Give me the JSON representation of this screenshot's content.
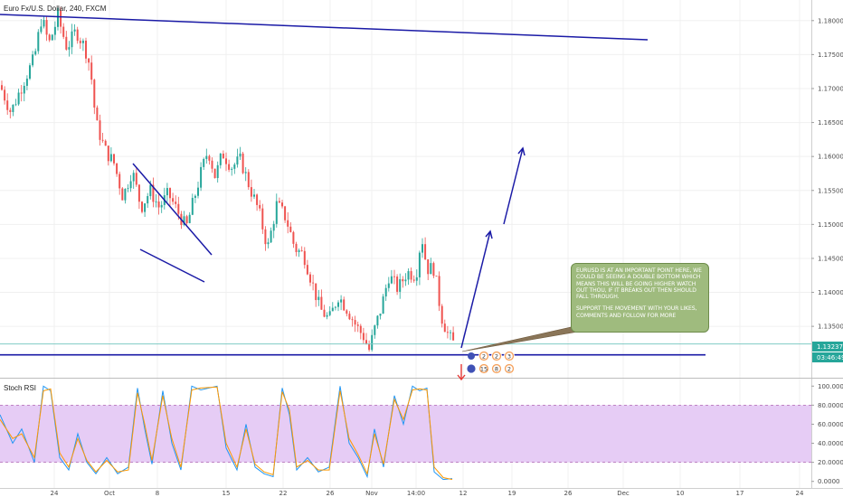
{
  "colors": {
    "up": "#26a69a",
    "down": "#ef5350",
    "trendline": "#1a1aa6",
    "hline": "#80cbc4",
    "rsi_k": "#2196f3",
    "rsi_d": "#ff9800",
    "band": "#e6ccf5"
  },
  "chart_data": [
    {
      "type": "candlestick",
      "title": "Euro Fx/U.S. Dollar, 240, FXCM",
      "y_ticks": [
        "1.18000",
        "1.17500",
        "1.17000",
        "1.16500",
        "1.16000",
        "1.15500",
        "1.15000",
        "1.14500",
        "1.14000",
        "1.13500"
      ],
      "ylim": [
        1.1285,
        1.1825
      ],
      "x_ticks": [
        "24",
        "Oct",
        "8",
        "15",
        "22",
        "26",
        "Nov",
        "14:00",
        "12",
        "19",
        "26",
        "Dec",
        "10",
        "17",
        "24"
      ],
      "price_label": "1.13237",
      "countdown_label": "03:46:49",
      "last_price": 1.1324,
      "support_level": 1.1308,
      "price_path": [
        [
          0,
          1.1705
        ],
        [
          12,
          1.1665
        ],
        [
          26,
          1.171
        ],
        [
          38,
          1.1745
        ],
        [
          46,
          1.1805
        ],
        [
          54,
          1.1765
        ],
        [
          64,
          1.1805
        ],
        [
          74,
          1.176
        ],
        [
          84,
          1.1785
        ],
        [
          94,
          1.176
        ],
        [
          100,
          1.173
        ],
        [
          106,
          1.165
        ],
        [
          116,
          1.161
        ],
        [
          126,
          1.159
        ],
        [
          136,
          1.154
        ],
        [
          146,
          1.158
        ],
        [
          156,
          1.1525
        ],
        [
          166,
          1.155
        ],
        [
          176,
          1.1525
        ],
        [
          186,
          1.1545
        ],
        [
          196,
          1.152
        ],
        [
          206,
          1.1495
        ],
        [
          214,
          1.1535
        ],
        [
          222,
          1.1575
        ],
        [
          230,
          1.161
        ],
        [
          238,
          1.157
        ],
        [
          246,
          1.1605
        ],
        [
          256,
          1.1585
        ],
        [
          266,
          1.1595
        ],
        [
          276,
          1.1555
        ],
        [
          286,
          1.152
        ],
        [
          296,
          1.1465
        ],
        [
          306,
          1.153
        ],
        [
          316,
          1.151
        ],
        [
          326,
          1.1465
        ],
        [
          336,
          1.1455
        ],
        [
          346,
          1.141
        ],
        [
          354,
          1.1375
        ],
        [
          364,
          1.136
        ],
        [
          374,
          1.1395
        ],
        [
          384,
          1.1375
        ],
        [
          394,
          1.135
        ],
        [
          402,
          1.1335
        ],
        [
          408,
          1.1315
        ],
        [
          414,
          1.1345
        ],
        [
          422,
          1.138
        ],
        [
          430,
          1.1425
        ],
        [
          440,
          1.1405
        ],
        [
          450,
          1.143
        ],
        [
          460,
          1.1425
        ],
        [
          466,
          1.1485
        ],
        [
          472,
          1.1435
        ],
        [
          480,
          1.1435
        ],
        [
          488,
          1.1365
        ],
        [
          496,
          1.1335
        ],
        [
          502,
          1.1324
        ]
      ]
    },
    {
      "type": "line",
      "title": "Stoch RSI",
      "y_ticks": [
        "100.0000",
        "80.0000",
        "60.0000",
        "40.0000",
        "20.0000",
        "0.0000"
      ],
      "ylim": [
        -5,
        105
      ],
      "bands": [
        20,
        80
      ],
      "series": [
        {
          "values": [
            [
              0,
              70
            ],
            [
              14,
              40
            ],
            [
              24,
              55
            ],
            [
              38,
              20
            ],
            [
              48,
              100
            ],
            [
              56,
              95
            ],
            [
              66,
              25
            ],
            [
              76,
              12
            ],
            [
              86,
              50
            ],
            [
              96,
              20
            ],
            [
              106,
              8
            ],
            [
              118,
              25
            ],
            [
              130,
              8
            ],
            [
              142,
              15
            ],
            [
              152,
              98
            ],
            [
              160,
              55
            ],
            [
              168,
              18
            ],
            [
              180,
              95
            ],
            [
              190,
              40
            ],
            [
              200,
              12
            ],
            [
              212,
              100
            ],
            [
              222,
              96
            ],
            [
              240,
              100
            ],
            [
              250,
              35
            ],
            [
              262,
              12
            ],
            [
              272,
              60
            ],
            [
              282,
              15
            ],
            [
              292,
              8
            ],
            [
              302,
              5
            ],
            [
              312,
              98
            ],
            [
              320,
              70
            ],
            [
              328,
              12
            ],
            [
              340,
              25
            ],
            [
              352,
              10
            ],
            [
              364,
              15
            ],
            [
              376,
              100
            ],
            [
              386,
              40
            ],
            [
              396,
              25
            ],
            [
              406,
              5
            ],
            [
              414,
              55
            ],
            [
              424,
              15
            ],
            [
              436,
              90
            ],
            [
              446,
              60
            ],
            [
              456,
              100
            ],
            [
              464,
              95
            ],
            [
              472,
              98
            ],
            [
              480,
              10
            ],
            [
              490,
              2
            ],
            [
              500,
              3
            ]
          ]
        },
        {
          "values": [
            [
              0,
              65
            ],
            [
              14,
              45
            ],
            [
              24,
              50
            ],
            [
              38,
              25
            ],
            [
              48,
              95
            ],
            [
              56,
              97
            ],
            [
              66,
              30
            ],
            [
              76,
              15
            ],
            [
              86,
              45
            ],
            [
              96,
              22
            ],
            [
              106,
              10
            ],
            [
              118,
              22
            ],
            [
              130,
              10
            ],
            [
              142,
              12
            ],
            [
              152,
              93
            ],
            [
              160,
              60
            ],
            [
              168,
              22
            ],
            [
              180,
              90
            ],
            [
              190,
              45
            ],
            [
              200,
              15
            ],
            [
              212,
              96
            ],
            [
              222,
              98
            ],
            [
              240,
              99
            ],
            [
              250,
              40
            ],
            [
              262,
              15
            ],
            [
              272,
              55
            ],
            [
              282,
              18
            ],
            [
              292,
              10
            ],
            [
              302,
              7
            ],
            [
              312,
              94
            ],
            [
              320,
              75
            ],
            [
              328,
              15
            ],
            [
              340,
              22
            ],
            [
              352,
              12
            ],
            [
              364,
              12
            ],
            [
              376,
              95
            ],
            [
              386,
              45
            ],
            [
              396,
              28
            ],
            [
              406,
              8
            ],
            [
              414,
              50
            ],
            [
              424,
              18
            ],
            [
              436,
              86
            ],
            [
              446,
              65
            ],
            [
              456,
              96
            ],
            [
              464,
              97
            ],
            [
              472,
              96
            ],
            [
              480,
              15
            ],
            [
              490,
              4
            ],
            [
              500,
              2
            ]
          ]
        }
      ]
    }
  ],
  "note": {
    "p1": "EURUSD IS AT AN IMPORTANT POINT HERE, WE COULD BE SEEING A DOUBLE BOTTOM WHICH MEANS THIS WILL BE GOING HIGHER WATCH OUT THOU, IF IT BREAKS OUT THEN SHOULD FALL THROUGH.",
    "p2": "SUPPORT THE MOVEMENT WITH YOUR LIKES, COMMENTS AND FOLLOW FOR MORE"
  },
  "badges": [
    "2",
    "2",
    "3",
    "15",
    "8",
    "2"
  ]
}
